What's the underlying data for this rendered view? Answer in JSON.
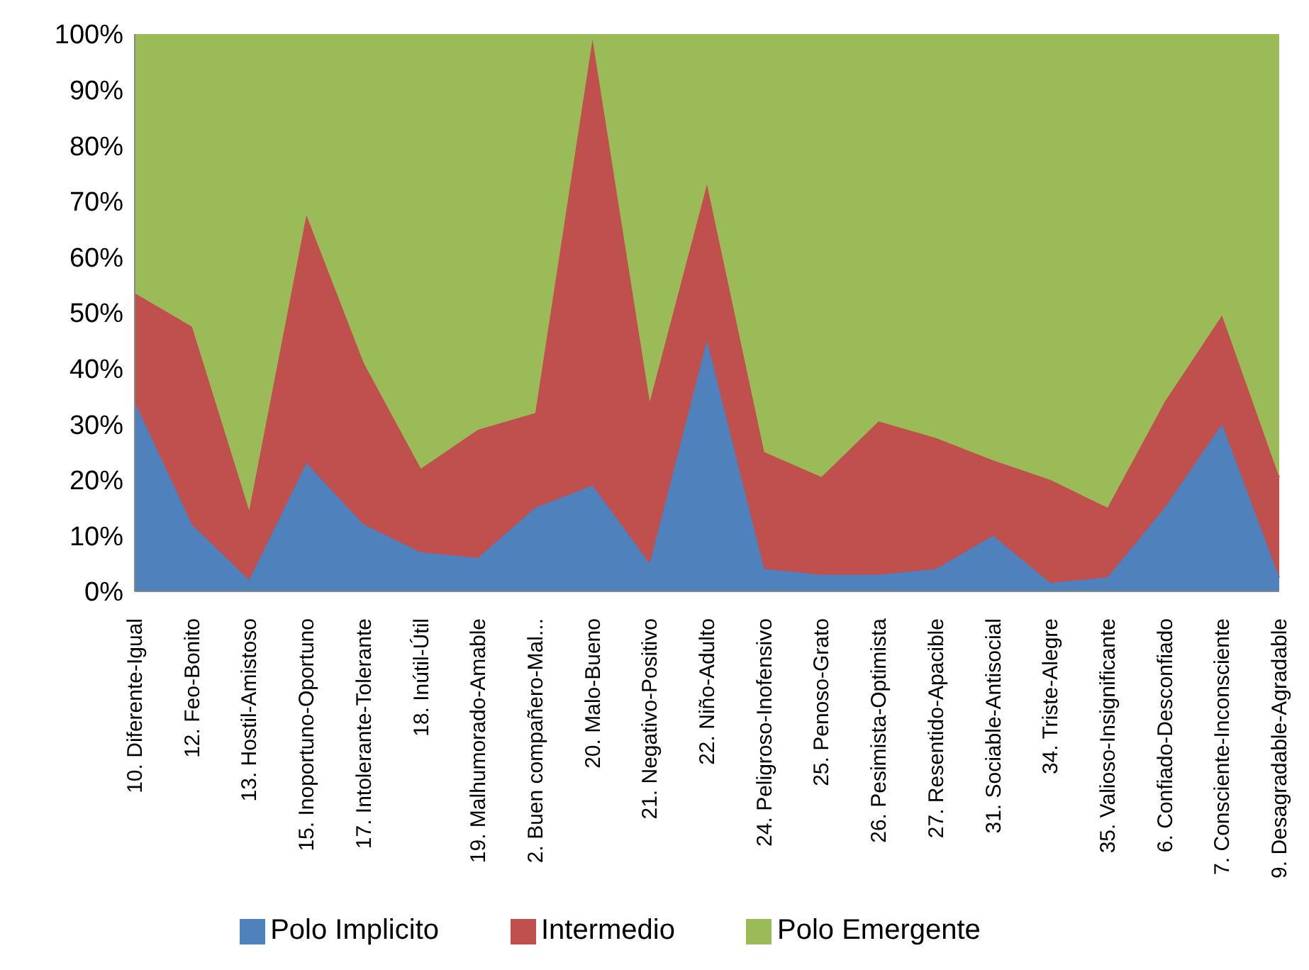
{
  "chart_data": {
    "type": "area",
    "stacked": true,
    "categories": [
      "10. Diferente-Igual",
      "12. Feo-Bonito",
      "13. Hostil-Amistoso",
      "15. Inoportuno-Oportuno",
      "17. Intolerante-Tolerante",
      "18. Inútil-Útil",
      "19. Malhumorado-Amable",
      "2. Buen compañero-Mal...",
      "20. Malo-Bueno",
      "21. Negativo-Positivo",
      "22. Niño-Adulto",
      "24. Peligroso-Inofensivo",
      "25. Penoso-Grato",
      "26. Pesimista-Optimista",
      "27. Resentido-Apacible",
      "31. Sociable-Antisocial",
      "34. Triste-Alegre",
      "35. Valioso-Insignificante",
      "6. Confiado-Desconfiado",
      "7. Consciente-Inconsciente",
      "9. Desagradable-Agradable"
    ],
    "series": [
      {
        "name": "Polo Implicito",
        "color": "#4f81bd",
        "values": [
          34,
          12,
          2,
          23,
          12,
          7,
          6,
          15,
          19,
          5,
          45,
          4,
          3,
          3,
          4,
          10,
          1.5,
          2.5,
          15,
          30,
          2.5
        ]
      },
      {
        "name": "Intermedio",
        "color": "#c0504d",
        "values": [
          19.5,
          35.5,
          12.5,
          44.5,
          29,
          15,
          23,
          17,
          80,
          29,
          28,
          21,
          17.5,
          27.5,
          23.5,
          13.5,
          18.5,
          12.5,
          19,
          19.5,
          18
        ]
      },
      {
        "name": "Polo Emergente",
        "color": "#9bbb59",
        "values": [
          46.5,
          52.5,
          85.5,
          32.5,
          59,
          78,
          71,
          68,
          1,
          66,
          27,
          75,
          79.5,
          69.5,
          72.5,
          76.5,
          80,
          85,
          66,
          50.5,
          79.5
        ]
      }
    ],
    "ylim": [
      0,
      100
    ],
    "yticks": [
      {
        "value": 0,
        "label": "0%"
      },
      {
        "value": 10,
        "label": "10%"
      },
      {
        "value": 20,
        "label": "20%"
      },
      {
        "value": 30,
        "label": "30%"
      },
      {
        "value": 40,
        "label": "40%"
      },
      {
        "value": 50,
        "label": "50%"
      },
      {
        "value": 60,
        "label": "60%"
      },
      {
        "value": 70,
        "label": "70%"
      },
      {
        "value": 80,
        "label": "80%"
      },
      {
        "value": 90,
        "label": "90%"
      },
      {
        "value": 100,
        "label": "100%"
      }
    ],
    "legend": "bottom"
  }
}
